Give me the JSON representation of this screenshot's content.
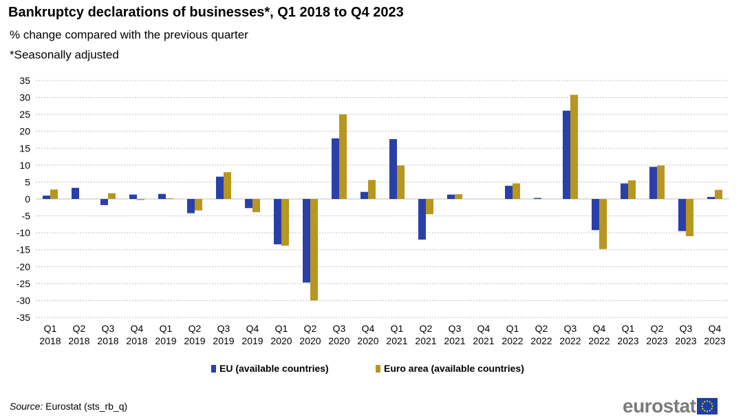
{
  "header": {
    "title": "Bankruptcy declarations of businesses*, Q1 2018 to Q4 2023",
    "subtitle": "% change compared with the previous quarter",
    "note": "*Seasonally adjusted"
  },
  "footer": {
    "source_label": "Source:",
    "source_text": "Eurostat (sts_rb_q)",
    "logo_text": "eurostat",
    "logo_icon": "eu-flag-icon"
  },
  "colors": {
    "eu": "#2a40a8",
    "euro_area": "#b8961f",
    "grid": "#bfbfbf"
  },
  "chart_data": {
    "type": "bar",
    "categories": [
      [
        "Q1",
        "2018"
      ],
      [
        "Q2",
        "2018"
      ],
      [
        "Q3",
        "2018"
      ],
      [
        "Q4",
        "2018"
      ],
      [
        "Q1",
        "2019"
      ],
      [
        "Q2",
        "2019"
      ],
      [
        "Q3",
        "2019"
      ],
      [
        "Q4",
        "2019"
      ],
      [
        "Q1",
        "2020"
      ],
      [
        "Q2",
        "2020"
      ],
      [
        "Q3",
        "2020"
      ],
      [
        "Q4",
        "2020"
      ],
      [
        "Q1",
        "2021"
      ],
      [
        "Q2",
        "2021"
      ],
      [
        "Q3",
        "2021"
      ],
      [
        "Q4",
        "2021"
      ],
      [
        "Q1",
        "2022"
      ],
      [
        "Q2",
        "2022"
      ],
      [
        "Q3",
        "2022"
      ],
      [
        "Q4",
        "2022"
      ],
      [
        "Q1",
        "2023"
      ],
      [
        "Q2",
        "2023"
      ],
      [
        "Q3",
        "2023"
      ],
      [
        "Q4",
        "2023"
      ]
    ],
    "series": [
      {
        "name": "EU (available countries)",
        "values": [
          1.0,
          3.3,
          -1.8,
          1.3,
          1.5,
          -4.2,
          6.6,
          -2.7,
          -13.4,
          -24.7,
          17.9,
          2.1,
          17.7,
          -12.0,
          1.3,
          0.0,
          3.9,
          0.3,
          26.1,
          -9.2,
          4.6,
          9.5,
          -9.5,
          0.6
        ]
      },
      {
        "name": "Euro area (available countries)",
        "values": [
          2.8,
          0.0,
          1.7,
          -0.3,
          0.2,
          -3.4,
          7.9,
          -3.9,
          -13.8,
          -30.0,
          25.0,
          5.6,
          9.9,
          -4.5,
          1.4,
          0.0,
          4.6,
          0.0,
          30.8,
          -14.8,
          5.5,
          9.9,
          -11.0,
          2.7
        ]
      }
    ],
    "ylim": [
      -35,
      35
    ],
    "yticks": [
      -35,
      -30,
      -25,
      -20,
      -15,
      -10,
      -5,
      0,
      5,
      10,
      15,
      20,
      25,
      30,
      35
    ],
    "grid": true,
    "legend_position": "bottom"
  }
}
